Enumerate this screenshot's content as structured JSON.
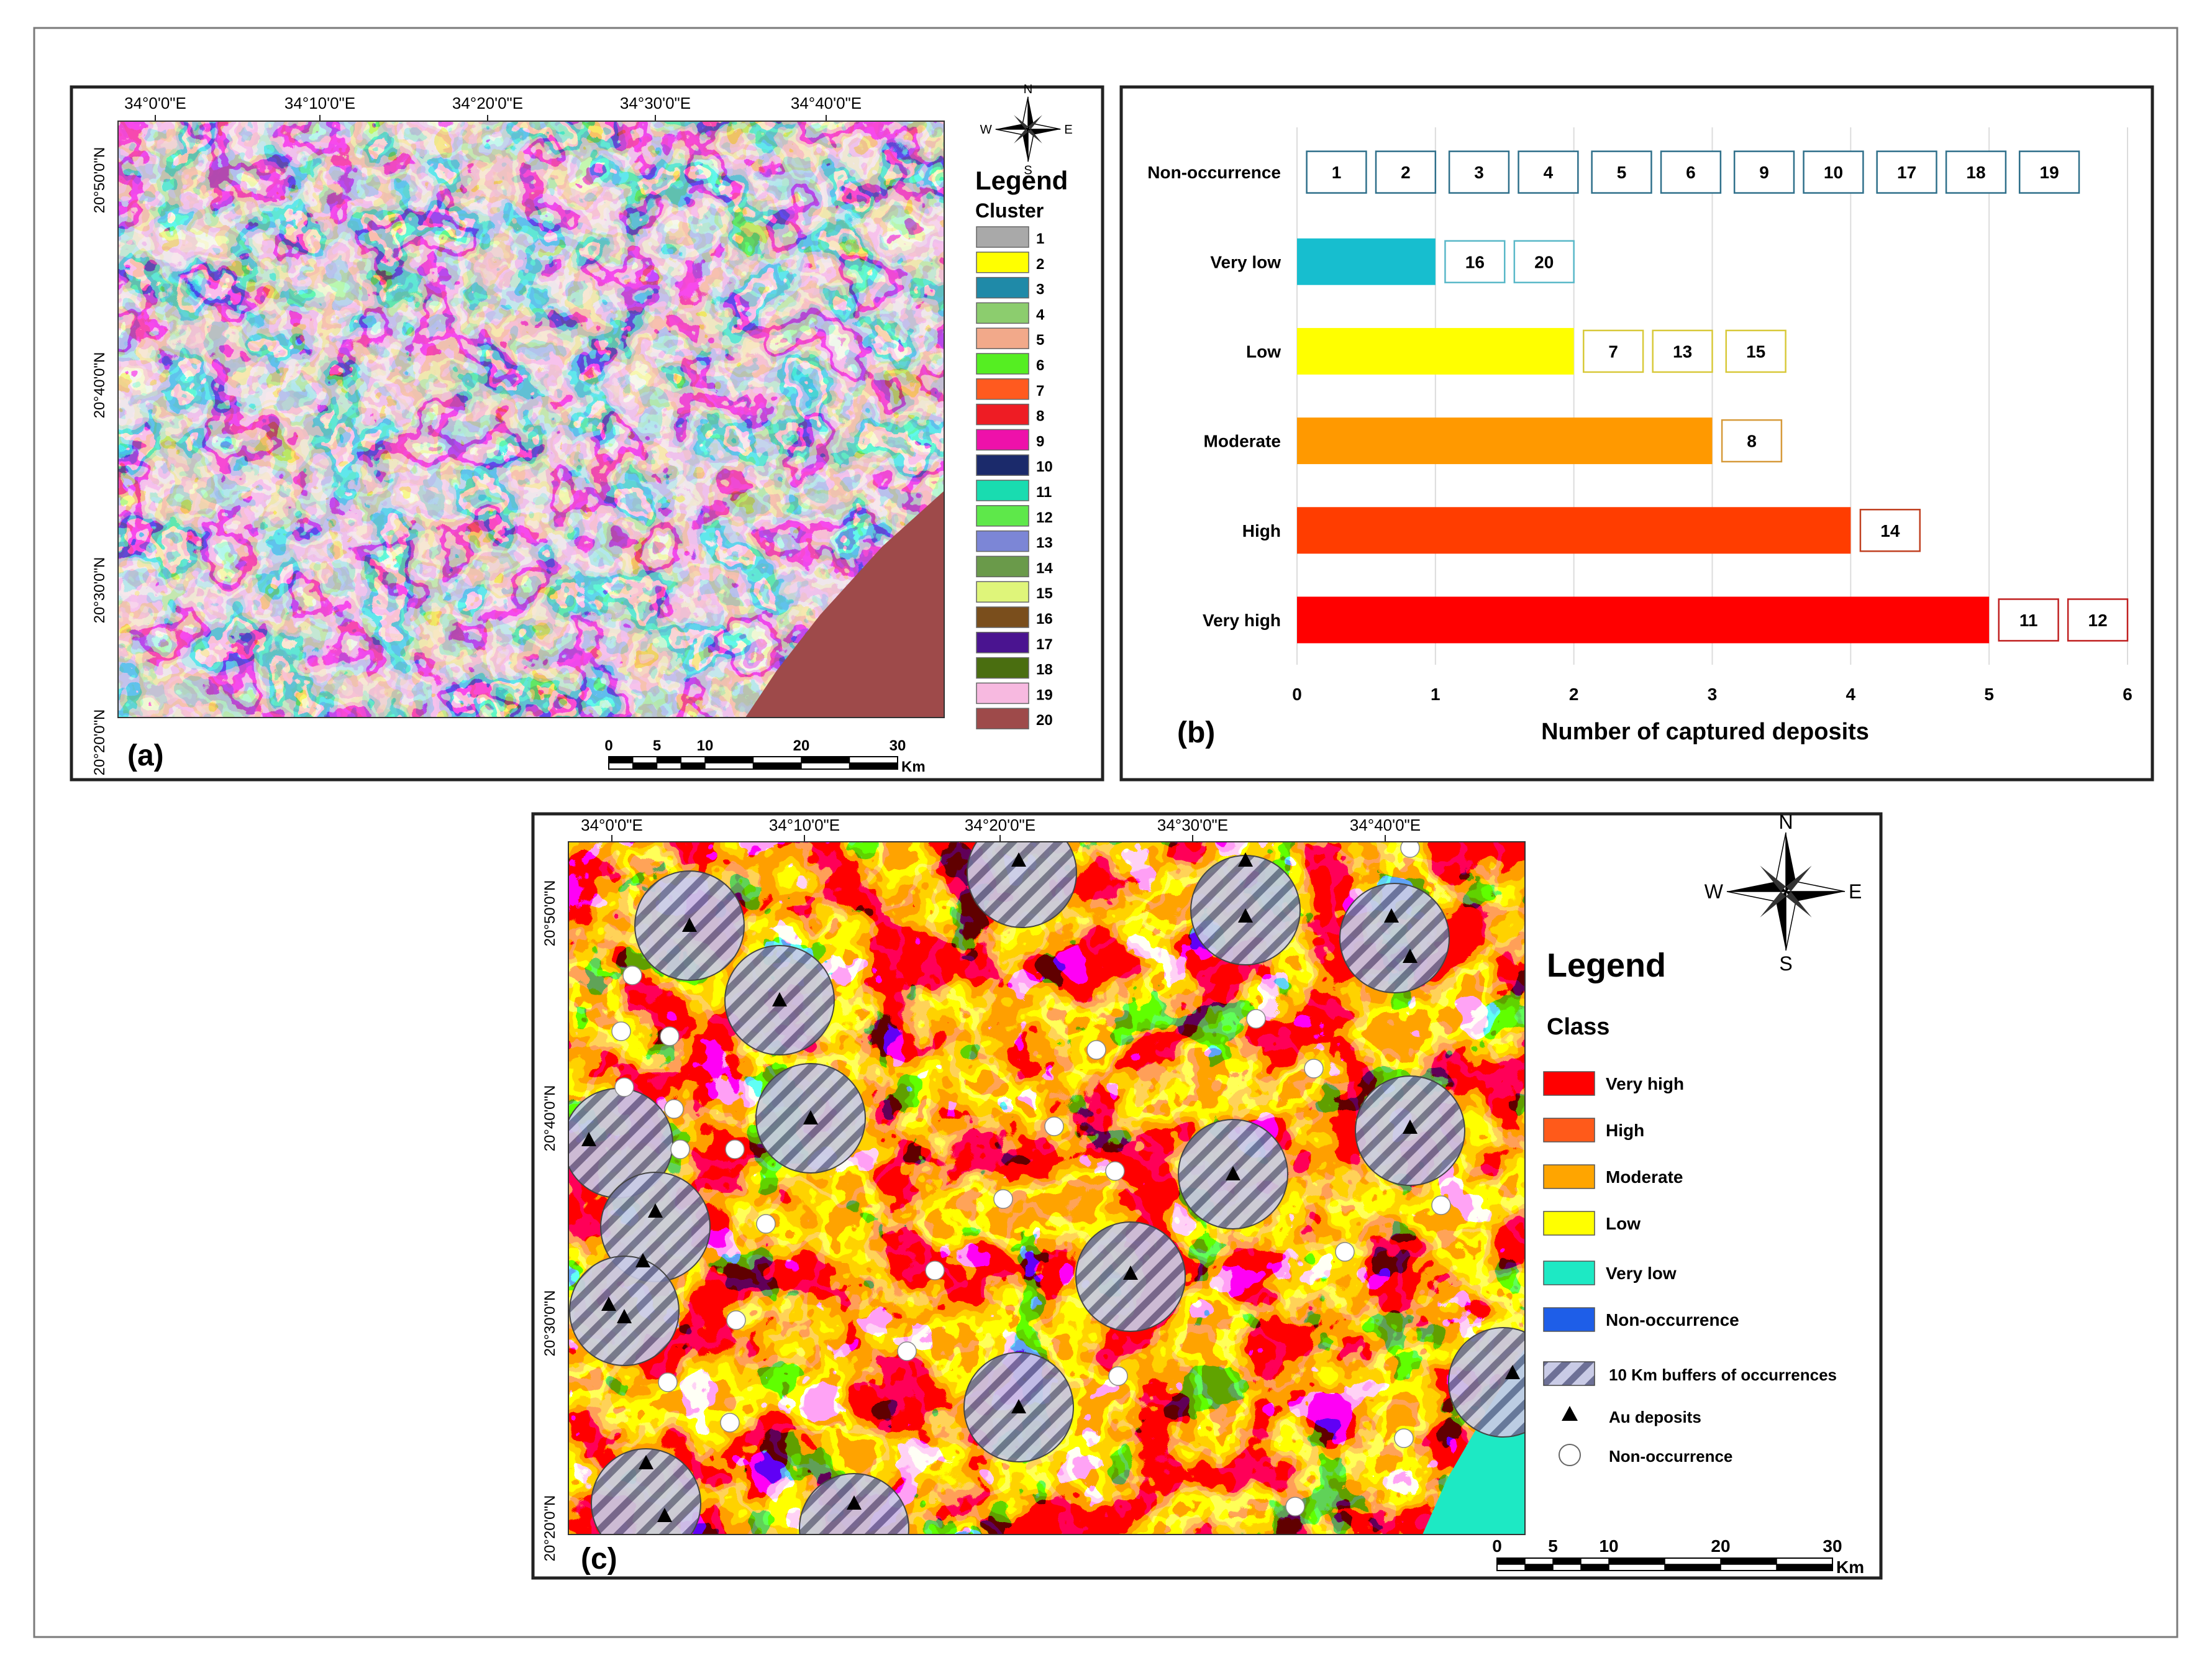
{
  "panel_a": {
    "label": "(a)",
    "lon_labels": [
      "34°0'0\"E",
      "34°10'0\"E",
      "34°20'0\"E",
      "34°30'0\"E",
      "34°40'0\"E"
    ],
    "lat_labels": [
      "20°50'0\"N",
      "20°40'0\"N",
      "20°30'0\"N",
      "20°20'0\"N"
    ],
    "legend_title": "Legend",
    "legend_subtitle": "Cluster",
    "clusters": [
      {
        "id": "1",
        "color": "#a9a9a9"
      },
      {
        "id": "2",
        "color": "#ffff00"
      },
      {
        "id": "3",
        "color": "#1f8aa8"
      },
      {
        "id": "4",
        "color": "#8ccd6e"
      },
      {
        "id": "5",
        "color": "#f2a98a"
      },
      {
        "id": "6",
        "color": "#55ee22"
      },
      {
        "id": "7",
        "color": "#ff5a1f"
      },
      {
        "id": "8",
        "color": "#ee1c24"
      },
      {
        "id": "9",
        "color": "#ee11aa"
      },
      {
        "id": "10",
        "color": "#1b2a6b"
      },
      {
        "id": "11",
        "color": "#19dcb0"
      },
      {
        "id": "12",
        "color": "#5ee84a"
      },
      {
        "id": "13",
        "color": "#7c86d6"
      },
      {
        "id": "14",
        "color": "#6a9a4a"
      },
      {
        "id": "15",
        "color": "#dff57a"
      },
      {
        "id": "16",
        "color": "#7a4e1c"
      },
      {
        "id": "17",
        "color": "#4a1490"
      },
      {
        "id": "18",
        "color": "#4a6e10"
      },
      {
        "id": "19",
        "color": "#f7b9e0"
      },
      {
        "id": "20",
        "color": "#9e4a4a"
      }
    ],
    "scale_labels": [
      "0",
      "5",
      "10",
      "20",
      "30"
    ],
    "scale_unit": "Km",
    "north_letters": {
      "n": "N",
      "e": "E",
      "s": "S",
      "w": "W"
    }
  },
  "panel_b": {
    "label": "(b)",
    "chart_data": {
      "type": "bar",
      "orientation": "horizontal",
      "categories": [
        "Non-occurrence",
        "Very low",
        "Low",
        "Moderate",
        "High",
        "Very high"
      ],
      "values": [
        0,
        1,
        2,
        3,
        4,
        5
      ],
      "colors": [
        "#ffffff",
        "#17becf",
        "#ffff00",
        "#ff9900",
        "#ff3d00",
        "#ff0000"
      ],
      "box_colors": [
        "#2e6f8a",
        "#5ab8c8",
        "#d8c93a",
        "#d69a3a",
        "#c04020",
        "#c02020"
      ],
      "captured_ids": [
        [
          "1",
          "2",
          "3",
          "4",
          "5",
          "6",
          "9",
          "10",
          "17",
          "18",
          "19"
        ],
        [
          "16",
          "20"
        ],
        [
          "7",
          "13",
          "15"
        ],
        [
          "8"
        ],
        [
          "14"
        ],
        [
          "11",
          "12"
        ]
      ],
      "xlim": [
        0,
        6
      ],
      "xticks": [
        "0",
        "1",
        "2",
        "3",
        "4",
        "5",
        "6"
      ],
      "xlabel": "Number of captured deposits",
      "grid": true
    }
  },
  "panel_c": {
    "label": "(c)",
    "lon_labels": [
      "34°0'0\"E",
      "34°10'0\"E",
      "34°20'0\"E",
      "34°30'0\"E",
      "34°40'0\"E"
    ],
    "lat_labels": [
      "20°50'0\"N",
      "20°40'0\"N",
      "20°30'0\"N",
      "20°20'0\"N"
    ],
    "legend_title": "Legend",
    "legend_subtitle": "Class",
    "classes": [
      {
        "name": "Very high",
        "color": "#ff0000"
      },
      {
        "name": "High",
        "color": "#ff5a1a"
      },
      {
        "name": "Moderate",
        "color": "#ffa500"
      },
      {
        "name": "Low",
        "color": "#ffff00"
      },
      {
        "name": "Very low",
        "color": "#1de9c4"
      },
      {
        "name": "Non-occurrence",
        "color": "#1e5ee8"
      }
    ],
    "symbols": {
      "buffers": "10 Km buffers of occurrences",
      "deposits": "Au deposits",
      "non_occurrence": "Non-occurrence"
    },
    "scale_labels": [
      "0",
      "5",
      "10",
      "20",
      "30"
    ],
    "scale_unit": "Km",
    "north_letters": {
      "n": "N",
      "e": "E",
      "s": "S",
      "w": "W"
    }
  }
}
